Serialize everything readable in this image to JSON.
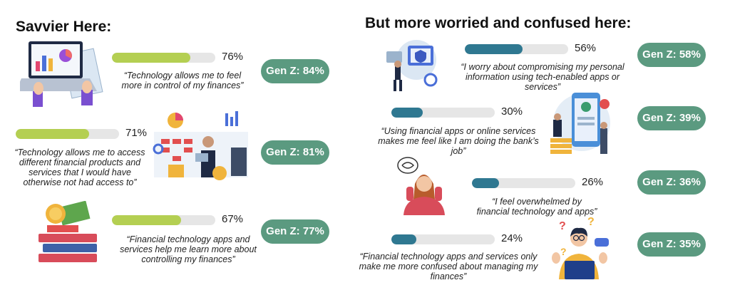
{
  "colors": {
    "left_fill": "#b4cf52",
    "right_fill": "#2f7891",
    "track": "#e6e6e6",
    "badge": "#5b9a80"
  },
  "left": {
    "heading": "Savvier Here:",
    "items": [
      {
        "percent": "76%",
        "quote": "“Technology allows me to feel more in control of my finances”",
        "genz": "Gen Z: 84%"
      },
      {
        "percent": "71%",
        "quote": "“Technology allows me to access different financial products and services that I would have otherwise not had access to”",
        "genz": "Gen Z: 81%"
      },
      {
        "percent": "67%",
        "quote": "“Financial technology apps and services help me learn more about controlling my finances”",
        "genz": "Gen Z: 77%"
      }
    ]
  },
  "right": {
    "heading": "But more worried and confused here:",
    "items": [
      {
        "percent": "56%",
        "quote": "“I worry about compromising my personal information using tech-enabled apps or services”",
        "genz": "Gen Z: 58%"
      },
      {
        "percent": "30%",
        "quote": "“Using financial apps or online services makes me feel like I am doing the bank’s job”",
        "genz": "Gen Z: 39%"
      },
      {
        "percent": "26%",
        "quote": "“I feel overwhelmed by financial technology and apps”",
        "genz": "Gen Z: 36%"
      },
      {
        "percent": "24%",
        "quote": "“Financial technology apps and services only make me more confused about managing my finances”",
        "genz": "Gen Z: 35%"
      }
    ]
  },
  "chart_data": {
    "type": "bar",
    "categories": [
      "Technology allows me to feel more in control of my finances",
      "Technology allows me to access different financial products and services that I would have otherwise not had access to",
      "Financial technology apps and services help me learn more about controlling my finances",
      "I worry about compromising my personal information using tech-enabled apps or services",
      "Using financial apps or online services makes me feel like I am doing the bank’s job",
      "I feel overwhelmed by financial technology and apps",
      "Financial technology apps and services only make me more confused about managing my finances"
    ],
    "series": [
      {
        "values": [
          76,
          71,
          67,
          56,
          30,
          26,
          24
        ]
      },
      {
        "name": "Gen Z",
        "values": [
          84,
          81,
          77,
          58,
          39,
          36,
          35
        ]
      }
    ],
    "ylim": [
      0,
      100
    ]
  }
}
